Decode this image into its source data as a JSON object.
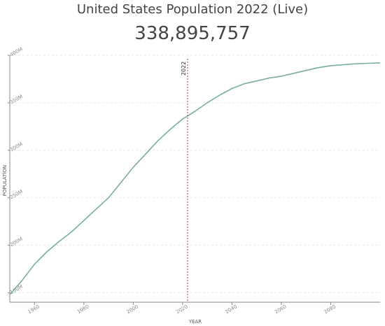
{
  "header": {
    "title": "United States Population 2022 (Live)",
    "counter": "338,895,757"
  },
  "colors": {
    "line": "#7aae9c",
    "marker": "#c0392b",
    "grid": "#e6e6e6",
    "axis": "#888888"
  },
  "chart_data": {
    "type": "line",
    "xlabel": "YEAR",
    "ylabel": "POPULATION",
    "xlim": [
      1950,
      2100
    ],
    "ylim": [
      140000000,
      400000000
    ],
    "x_ticks": [
      1960,
      1980,
      2000,
      2020,
      2040,
      2060,
      2080
    ],
    "y_ticks": [
      150000000,
      200000000,
      250000000,
      300000000,
      350000000,
      400000000
    ],
    "y_tick_labels": [
      "150M",
      "200M",
      "250M",
      "300M",
      "350M",
      "400M"
    ],
    "marker": {
      "year": 2022,
      "label": "2022"
    },
    "grid": true,
    "series": [
      {
        "x": [
          1950,
          1955,
          1960,
          1965,
          1970,
          1975,
          1980,
          1985,
          1990,
          1995,
          2000,
          2005,
          2010,
          2015,
          2020,
          2022,
          2025,
          2030,
          2035,
          2040,
          2045,
          2050,
          2055,
          2060,
          2065,
          2070,
          2075,
          2080,
          2085,
          2090,
          2095,
          2100
        ],
        "y": [
          148000000,
          163000000,
          180000000,
          193000000,
          204000000,
          214000000,
          226000000,
          238000000,
          250000000,
          266000000,
          282000000,
          296000000,
          310000000,
          322000000,
          333000000,
          336000000,
          341000000,
          350000000,
          358000000,
          365000000,
          370000000,
          373000000,
          376000000,
          378000000,
          381000000,
          384000000,
          387000000,
          389000000,
          390000000,
          391000000,
          391500000,
          392000000
        ]
      }
    ]
  }
}
